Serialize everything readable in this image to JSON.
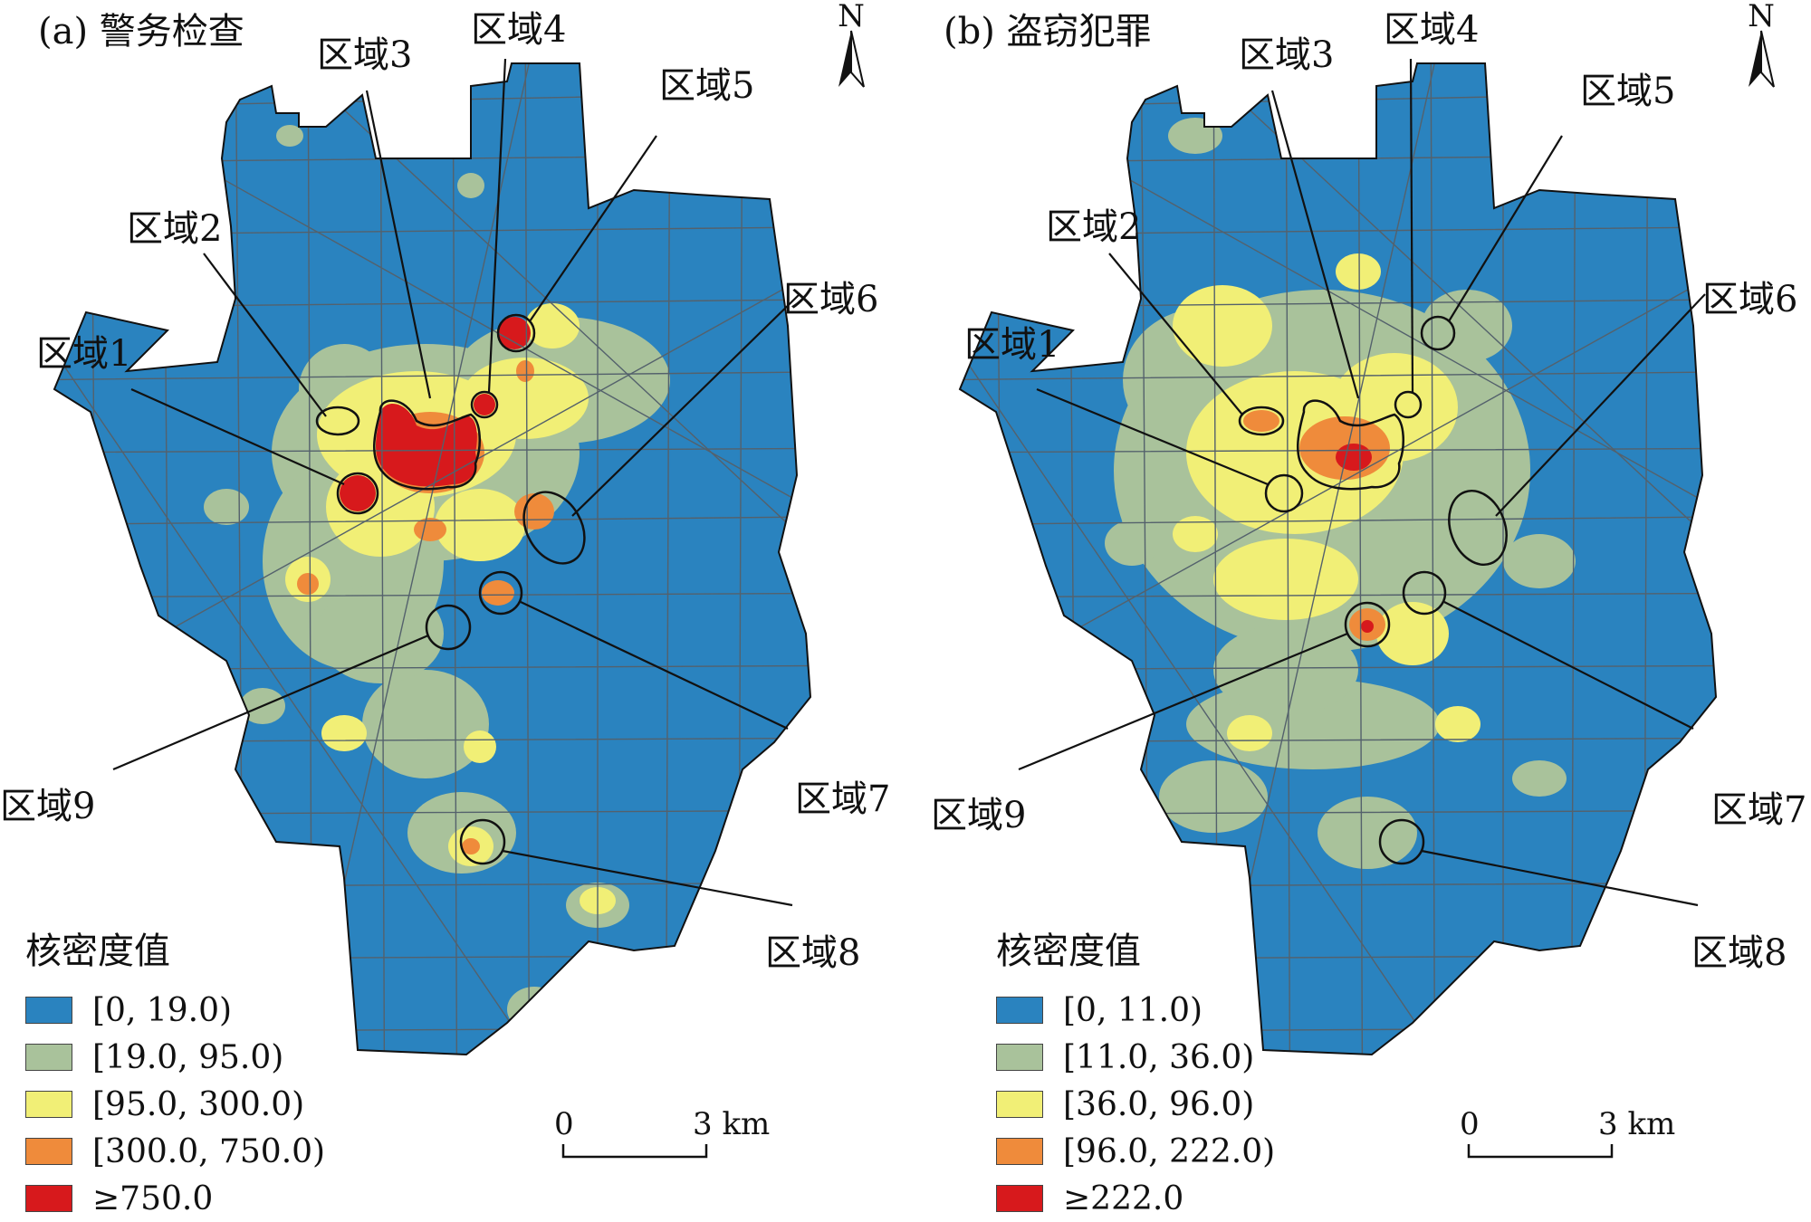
{
  "colors": {
    "class1": "#2a83bf",
    "class2": "#a9c29b",
    "class3": "#f1ef76",
    "class4": "#ef8b3b",
    "class5": "#d7191c",
    "road": "#54616c",
    "outline": "#111111"
  },
  "panels": [
    {
      "id": "a",
      "title": "(a) 警务检查",
      "north_label": "N",
      "legend_title": "核密度值",
      "legend": [
        "[0, 19.0)",
        "[19.0, 95.0)",
        "[95.0, 300.0)",
        "[300.0, 750.0)",
        "≥750.0"
      ],
      "scale": {
        "zero": "0",
        "end": "3 km"
      },
      "regions": [
        "区域1",
        "区域2",
        "区域3",
        "区域4",
        "区域5",
        "区域6",
        "区域7",
        "区域8",
        "区域9"
      ]
    },
    {
      "id": "b",
      "title": "(b) 盗窃犯罪",
      "north_label": "N",
      "legend_title": "核密度值",
      "legend": [
        "[0, 11.0)",
        "[11.0, 36.0)",
        "[36.0, 96.0)",
        "[96.0, 222.0)",
        "≥222.0"
      ],
      "scale": {
        "zero": "0",
        "end": "3 km"
      },
      "regions": [
        "区域1",
        "区域2",
        "区域3",
        "区域4",
        "区域5",
        "区域6",
        "区域7",
        "区域8",
        "区域9"
      ]
    }
  ]
}
